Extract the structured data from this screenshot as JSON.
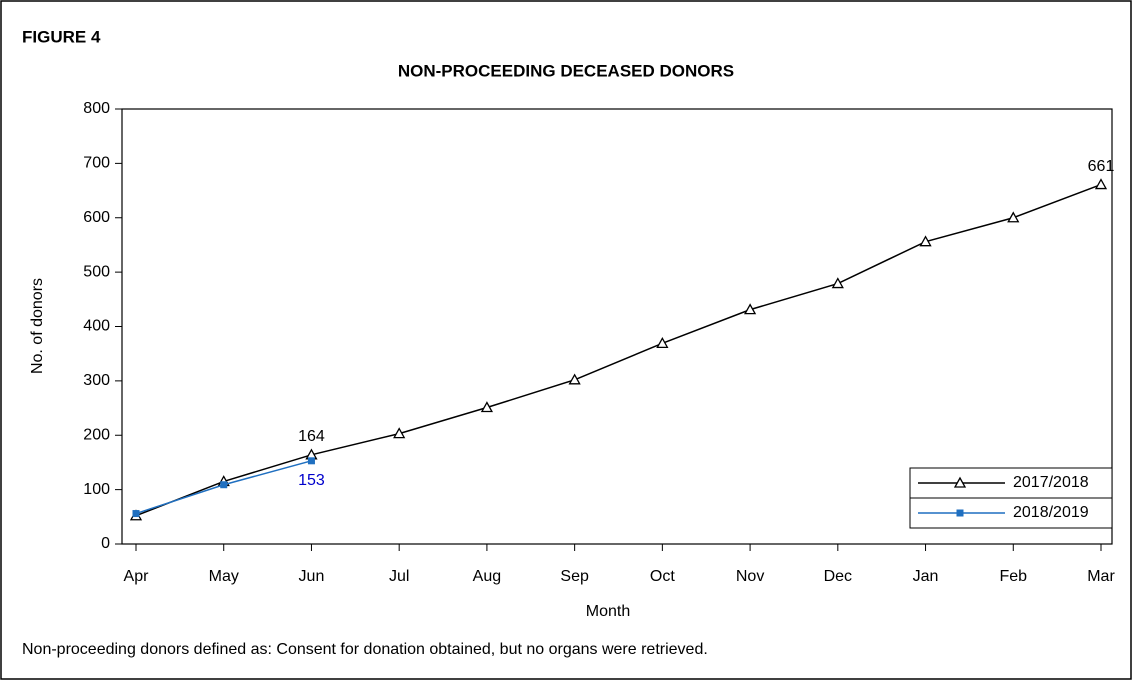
{
  "figure_label": "FIGURE 4",
  "footnote": "Non-proceeding donors defined as: Consent for donation obtained, but no organs were retrieved.",
  "chart_data": {
    "type": "line",
    "title": "NON-PROCEEDING DECEASED DONORS",
    "x_label": "Month",
    "y_label": "No. of donors",
    "categories": [
      "Apr",
      "May",
      "Jun",
      "Jul",
      "Aug",
      "Sep",
      "Oct",
      "Nov",
      "Dec",
      "Jan",
      "Feb",
      "Mar"
    ],
    "series": [
      {
        "name": "2017/2018",
        "color": "#000000",
        "marker": "triangle",
        "label_color": "#000000",
        "labeled": [
          2,
          11
        ],
        "values": [
          52,
          115,
          164,
          203,
          251,
          302,
          369,
          431,
          479,
          556,
          600,
          661
        ]
      },
      {
        "name": "2018/2019",
        "color": "#1f6fc0",
        "marker": "square",
        "label_color": "#0000cc",
        "labeled": [
          2
        ],
        "values": [
          56,
          109,
          153,
          null,
          null,
          null,
          null,
          null,
          null,
          null,
          null,
          null
        ]
      }
    ],
    "ylim": [
      0,
      800
    ],
    "yticks": [
      0,
      100,
      200,
      300,
      400,
      500,
      600,
      700,
      800
    ],
    "grid": false,
    "legend": "lower right"
  }
}
